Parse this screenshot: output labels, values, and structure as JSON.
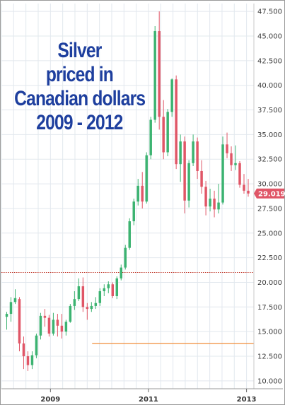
{
  "title_lines": [
    "Silver",
    "priced in",
    "Canadian dollars",
    "2009 - 2012"
  ],
  "colors": {
    "up": "#3cb371",
    "down": "#e05667",
    "grid": "#e2e8ee",
    "support_dotted": "#c0392b",
    "support_line": "#f08c3a",
    "price_tag": "#e05667"
  },
  "chart_data": {
    "type": "candlestick",
    "y_ticks": [
      "10.000",
      "12.500",
      "15.000",
      "17.500",
      "20.000",
      "22.500",
      "25.000",
      "27.500",
      "30.000",
      "32.500",
      "35.000",
      "37.500",
      "40.000",
      "42.500",
      "45.000",
      "47.500"
    ],
    "ylim": [
      9.2,
      48.3
    ],
    "x_ticks": [
      {
        "label": "2009",
        "t": 2009.0
      },
      {
        "label": "2011",
        "t": 2011.0
      },
      {
        "label": "2013",
        "t": 2013.0
      }
    ],
    "xlim": [
      2008.0,
      2013.15
    ],
    "last_price_label": "29.019",
    "h_lines": [
      {
        "value": 21.0,
        "style": "dotted",
        "from": 2008.0
      },
      {
        "value": 13.8,
        "style": "solid",
        "from": 2009.85
      }
    ],
    "candles": [
      [
        16.5,
        17.0,
        15.2,
        16.8
      ],
      [
        16.8,
        18.5,
        16.0,
        18.0
      ],
      [
        18.0,
        19.3,
        17.8,
        18.4
      ],
      [
        18.3,
        18.5,
        13.0,
        13.8
      ],
      [
        13.8,
        14.5,
        11.2,
        12.5
      ],
      [
        12.5,
        13.0,
        11.0,
        11.6
      ],
      [
        11.6,
        13.0,
        11.2,
        12.6
      ],
      [
        12.6,
        14.8,
        12.3,
        14.6
      ],
      [
        14.6,
        16.9,
        14.2,
        16.6
      ],
      [
        16.6,
        17.3,
        15.5,
        16.4
      ],
      [
        16.4,
        16.7,
        14.5,
        14.8
      ],
      [
        14.8,
        16.9,
        14.6,
        16.2
      ],
      [
        16.2,
        16.8,
        14.5,
        15.6
      ],
      [
        15.6,
        16.8,
        14.3,
        15.0
      ],
      [
        15.0,
        16.2,
        14.6,
        16.0
      ],
      [
        16.0,
        17.8,
        15.9,
        17.6
      ],
      [
        17.6,
        19.1,
        17.2,
        18.3
      ],
      [
        18.3,
        20.4,
        18.1,
        19.6
      ],
      [
        19.6,
        20.5,
        17.0,
        17.5
      ],
      [
        17.5,
        17.9,
        16.2,
        17.3
      ],
      [
        17.3,
        18.0,
        17.0,
        17.6
      ],
      [
        17.6,
        18.5,
        17.3,
        17.9
      ],
      [
        17.9,
        19.4,
        17.6,
        19.1
      ],
      [
        19.1,
        19.8,
        18.6,
        19.4
      ],
      [
        19.4,
        20.1,
        18.9,
        19.8
      ],
      [
        19.8,
        20.0,
        18.4,
        18.6
      ],
      [
        18.6,
        20.6,
        18.3,
        20.4
      ],
      [
        20.4,
        21.8,
        20.2,
        21.5
      ],
      [
        21.5,
        23.8,
        21.3,
        23.5
      ],
      [
        23.5,
        26.5,
        23.3,
        26.2
      ],
      [
        26.2,
        28.5,
        25.8,
        28.2
      ],
      [
        28.2,
        30.5,
        27.8,
        29.8
      ],
      [
        29.8,
        31.2,
        27.5,
        28.2
      ],
      [
        28.2,
        33.2,
        28.0,
        32.9
      ],
      [
        32.9,
        36.8,
        32.5,
        36.5
      ],
      [
        36.5,
        46.0,
        36.2,
        45.5
      ],
      [
        45.5,
        47.5,
        35.5,
        36.8
      ],
      [
        36.8,
        38.5,
        32.5,
        33.2
      ],
      [
        33.2,
        37.6,
        32.8,
        37.3
      ],
      [
        37.3,
        40.7,
        36.8,
        40.6
      ],
      [
        40.6,
        41.0,
        31.5,
        32.0
      ],
      [
        32.0,
        35.0,
        30.2,
        34.3
      ],
      [
        34.3,
        34.8,
        27.0,
        28.3
      ],
      [
        28.3,
        32.4,
        27.6,
        32.1
      ],
      [
        32.1,
        35.0,
        31.8,
        34.3
      ],
      [
        34.3,
        34.7,
        30.5,
        31.3
      ],
      [
        31.3,
        32.4,
        29.0,
        29.7
      ],
      [
        29.7,
        30.3,
        26.8,
        27.7
      ],
      [
        27.7,
        29.5,
        27.2,
        28.5
      ],
      [
        28.5,
        29.3,
        26.6,
        27.4
      ],
      [
        27.4,
        30.0,
        27.0,
        28.1
      ],
      [
        28.1,
        34.8,
        27.9,
        34.0
      ],
      [
        34.0,
        35.2,
        32.6,
        33.1
      ],
      [
        33.1,
        33.8,
        31.3,
        31.9
      ],
      [
        31.9,
        33.9,
        31.4,
        32.1
      ],
      [
        32.1,
        32.3,
        29.6,
        29.9
      ],
      [
        29.9,
        31.0,
        29.0,
        29.3
      ],
      [
        29.3,
        30.5,
        28.7,
        29.019
      ]
    ]
  }
}
